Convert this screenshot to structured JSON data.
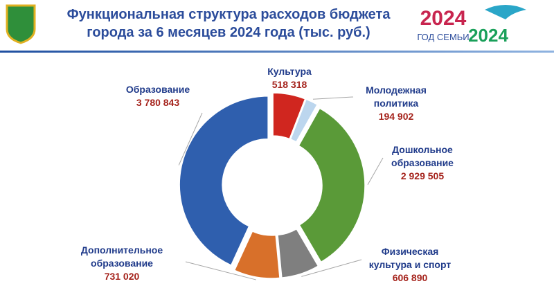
{
  "header": {
    "title_lines": [
      "Функциональная структура расходов бюджета",
      "города за 6 месяцев 2024 года (тыс. руб.)"
    ],
    "logo_year": "2024",
    "logo_caption": "ГОД СЕМЬИ",
    "logo2_year": "2024"
  },
  "chart_data": {
    "type": "donut",
    "categories": [
      "Культура",
      "Молодежная\nполитика",
      "Дошкольное\nобразование",
      "Физическая\nкультура и спорт",
      "Дополнительное\nобразование",
      "Образование"
    ],
    "values": [
      518318,
      194902,
      2929505,
      606890,
      731020,
      3780843
    ],
    "value_labels": [
      "518 318",
      "194 902",
      "2 929 505",
      "606 890",
      "731 020",
      "3 780 843"
    ],
    "colors": [
      "#d0261f",
      "#bcd6ee",
      "#5a9a38",
      "#7f7f7f",
      "#d8702a",
      "#2f5fae"
    ]
  }
}
